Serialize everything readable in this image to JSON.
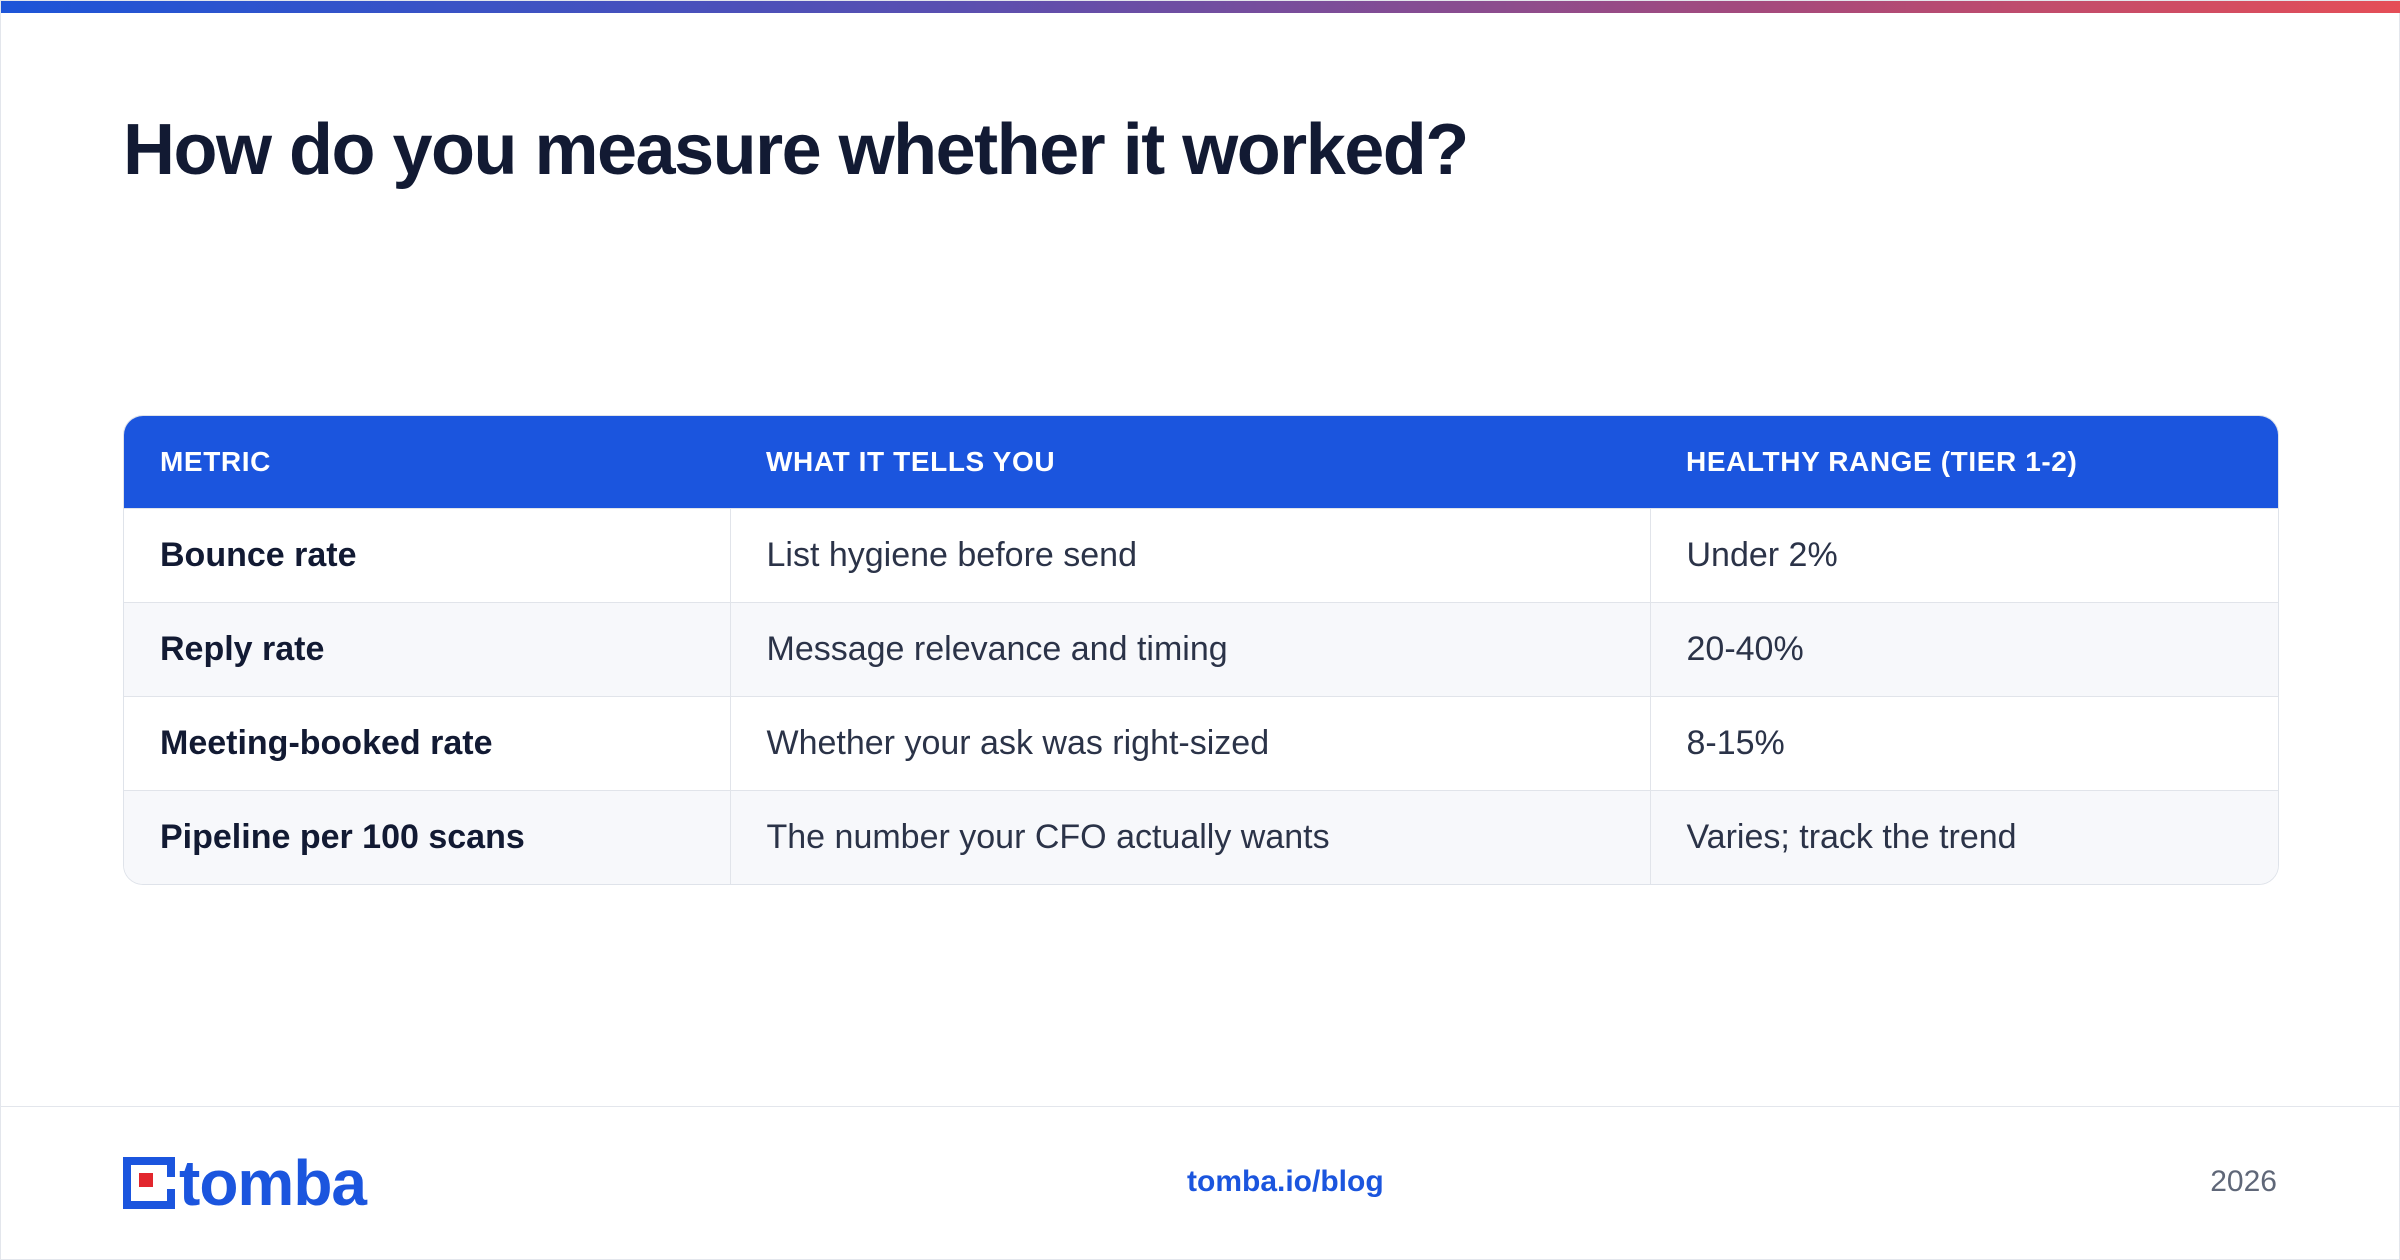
{
  "title": "How do you measure whether it worked?",
  "table": {
    "headers": [
      "METRIC",
      "WHAT IT TELLS YOU",
      "HEALTHY RANGE (TIER 1-2)"
    ],
    "rows": [
      {
        "metric": "Bounce rate",
        "meaning": "List hygiene before send",
        "range": "Under 2%"
      },
      {
        "metric": "Reply rate",
        "meaning": "Message relevance and timing",
        "range": "20-40%"
      },
      {
        "metric": "Meeting-booked rate",
        "meaning": "Whether your ask was right-sized",
        "range": "8-15%"
      },
      {
        "metric": "Pipeline per 100 scans",
        "meaning": "The number your CFO actually wants",
        "range": "Varies; track the trend"
      }
    ]
  },
  "footer": {
    "logo_text": "tomba",
    "link": "tomba.io/blog",
    "year": "2026"
  },
  "colors": {
    "brand_blue": "#1b55de",
    "brand_red": "#e2262d",
    "title_color": "#121a33"
  },
  "icons": {
    "logo": "tomba-logo-icon"
  }
}
